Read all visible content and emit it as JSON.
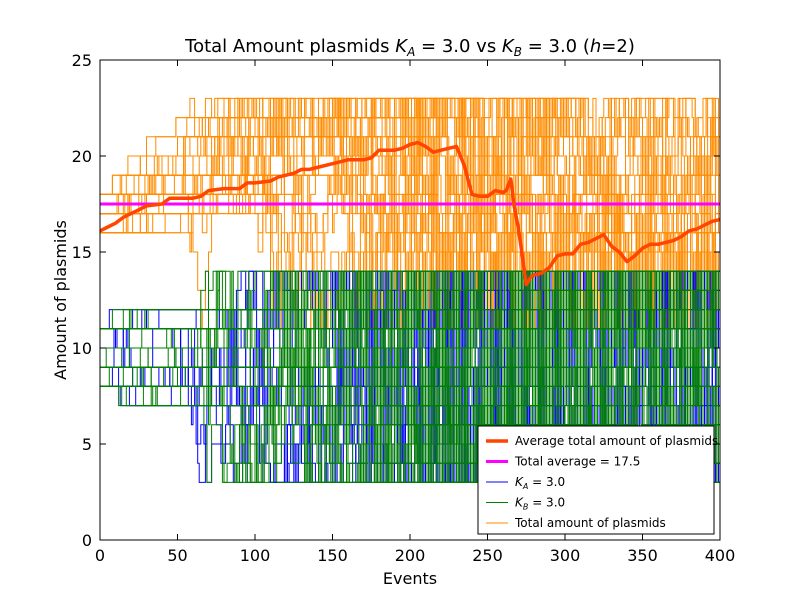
{
  "chart_data": {
    "type": "line",
    "title": "Total Amount plasmids K_A = 3.0 vs K_B = 3.0 (h=2)",
    "title_parts": {
      "prefix": "Total Amount plasmids ",
      "ka_sym": "K",
      "ka_sub": "A",
      "ka_val": " = 3.0 vs ",
      "kb_sym": "K",
      "kb_sub": "B",
      "kb_val": " = 3.0 (",
      "h_sym": "h",
      "suffix": "=2)"
    },
    "xlabel": "Events",
    "ylabel": "Amount of plasmids",
    "xlim": [
      0,
      400
    ],
    "ylim": [
      0,
      25
    ],
    "xticks": [
      "0",
      "50",
      "100",
      "150",
      "200",
      "250",
      "300",
      "350",
      "400"
    ],
    "yticks": [
      "0",
      "5",
      "10",
      "15",
      "20",
      "25"
    ],
    "grid": false,
    "legend_position": "lower right",
    "legend": [
      {
        "name": "Average total amount of plasmids",
        "color": "#ff4500"
      },
      {
        "name": "Total average = 17.5",
        "color": "#ff00ff"
      },
      {
        "name": "K_A = 3.0",
        "sym": "K",
        "sub": "A",
        "rest": " = 3.0",
        "color": "#0000ff"
      },
      {
        "name": "K_B = 3.0",
        "sym": "K",
        "sub": "B",
        "rest": " = 3.0",
        "color": "#008000"
      },
      {
        "name": "Total amount of plasmids",
        "color": "#ff8c00"
      }
    ],
    "series": [
      {
        "name": "Average total amount of plasmids",
        "color": "#ff4500",
        "x": [
          0,
          5,
          10,
          15,
          20,
          25,
          30,
          40,
          45,
          50,
          60,
          65,
          70,
          80,
          90,
          95,
          100,
          110,
          115,
          120,
          125,
          130,
          135,
          140,
          150,
          155,
          160,
          170,
          175,
          180,
          190,
          195,
          200,
          205,
          210,
          215,
          220,
          225,
          230,
          235,
          240,
          245,
          250,
          255,
          260,
          262,
          265,
          267,
          270,
          273,
          275,
          278,
          280,
          285,
          290,
          295,
          300,
          305,
          310,
          315,
          320,
          325,
          330,
          335,
          340,
          345,
          350,
          355,
          360,
          365,
          370,
          375,
          380,
          385,
          390,
          395,
          400
        ],
        "values": [
          16.1,
          16.3,
          16.5,
          16.8,
          17.0,
          17.2,
          17.4,
          17.5,
          17.8,
          17.8,
          17.8,
          17.9,
          18.2,
          18.3,
          18.3,
          18.6,
          18.6,
          18.7,
          18.9,
          19.0,
          19.1,
          19.3,
          19.3,
          19.4,
          19.6,
          19.7,
          19.8,
          19.8,
          19.9,
          20.3,
          20.3,
          20.4,
          20.6,
          20.7,
          20.5,
          20.2,
          20.3,
          20.4,
          20.5,
          19.5,
          18.0,
          17.9,
          17.9,
          18.2,
          18.1,
          18.2,
          18.8,
          17.5,
          16.2,
          14.5,
          13.3,
          13.7,
          13.8,
          13.9,
          14.2,
          14.8,
          14.9,
          14.9,
          15.4,
          15.5,
          15.7,
          15.9,
          15.3,
          15.0,
          14.5,
          14.8,
          15.2,
          15.4,
          15.4,
          15.5,
          15.6,
          15.8,
          16.1,
          16.2,
          16.4,
          16.6,
          16.7
        ]
      },
      {
        "name": "Total average = 17.5",
        "color": "#ff00ff",
        "x": [
          0,
          400
        ],
        "values": [
          17.5,
          17.5
        ]
      }
    ],
    "bands": [
      {
        "name": "Total amount of plasmids",
        "color": "#ff8c00",
        "count": 38,
        "seed": 11,
        "start_min": 16,
        "start_max": 18,
        "mode": "total"
      },
      {
        "name": "K_A = 3.0",
        "color": "#0000ff",
        "count": 30,
        "seed": 23,
        "start_min": 8,
        "start_max": 11,
        "mode": "low"
      },
      {
        "name": "K_B = 3.0",
        "color": "#008000",
        "count": 30,
        "seed": 37,
        "start_min": 8,
        "start_max": 11,
        "mode": "low"
      }
    ]
  }
}
